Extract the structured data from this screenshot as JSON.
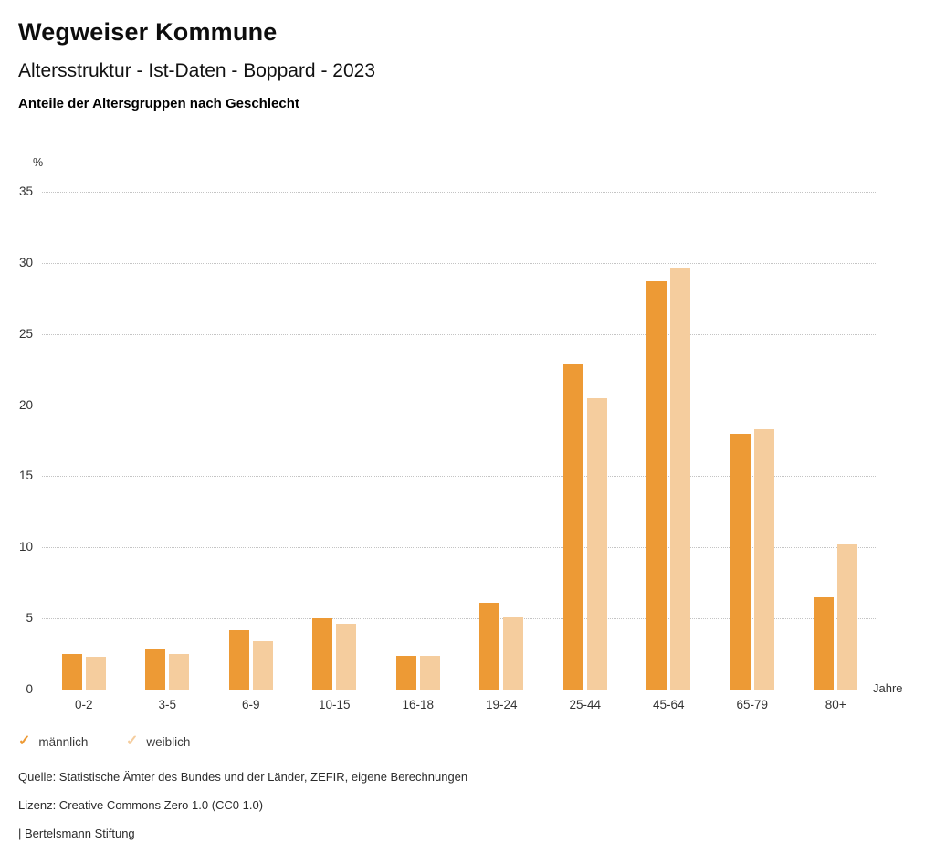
{
  "header": {
    "title": "Wegweiser Kommune",
    "subtitle": "Altersstruktur - Ist-Daten - Boppard - 2023",
    "caption": "Anteile der Altersgruppen nach Geschlecht"
  },
  "chart_data": {
    "type": "bar",
    "title": "Anteile der Altersgruppen nach Geschlecht",
    "categories": [
      "0-2",
      "3-5",
      "6-9",
      "10-15",
      "16-18",
      "19-24",
      "25-44",
      "45-64",
      "65-79",
      "80+"
    ],
    "series": [
      {
        "name": "männlich",
        "color": "#ED9A35",
        "values": [
          2.5,
          2.8,
          4.2,
          5.0,
          2.4,
          6.1,
          22.9,
          28.7,
          18.0,
          6.5
        ]
      },
      {
        "name": "weiblich",
        "color": "#F5CD9E",
        "values": [
          2.3,
          2.5,
          3.4,
          4.6,
          2.4,
          5.1,
          20.5,
          29.7,
          18.3,
          10.2
        ]
      }
    ],
    "xlabel": "Jahre",
    "ylabel": "%",
    "ylim": [
      0,
      35
    ],
    "yticks": [
      0,
      5,
      10,
      15,
      20,
      25,
      30,
      35
    ],
    "grid": true,
    "legend_position": "bottom"
  },
  "legend": {
    "check_glyph": "✓",
    "items": [
      {
        "label": "männlich"
      },
      {
        "label": "weiblich"
      }
    ]
  },
  "footer": {
    "source": "Quelle: Statistische Ämter des Bundes und der Länder, ZEFIR, eigene Berechnungen",
    "license": "Lizenz: Creative Commons Zero 1.0 (CC0 1.0)",
    "brand": "| Bertelsmann Stiftung"
  }
}
